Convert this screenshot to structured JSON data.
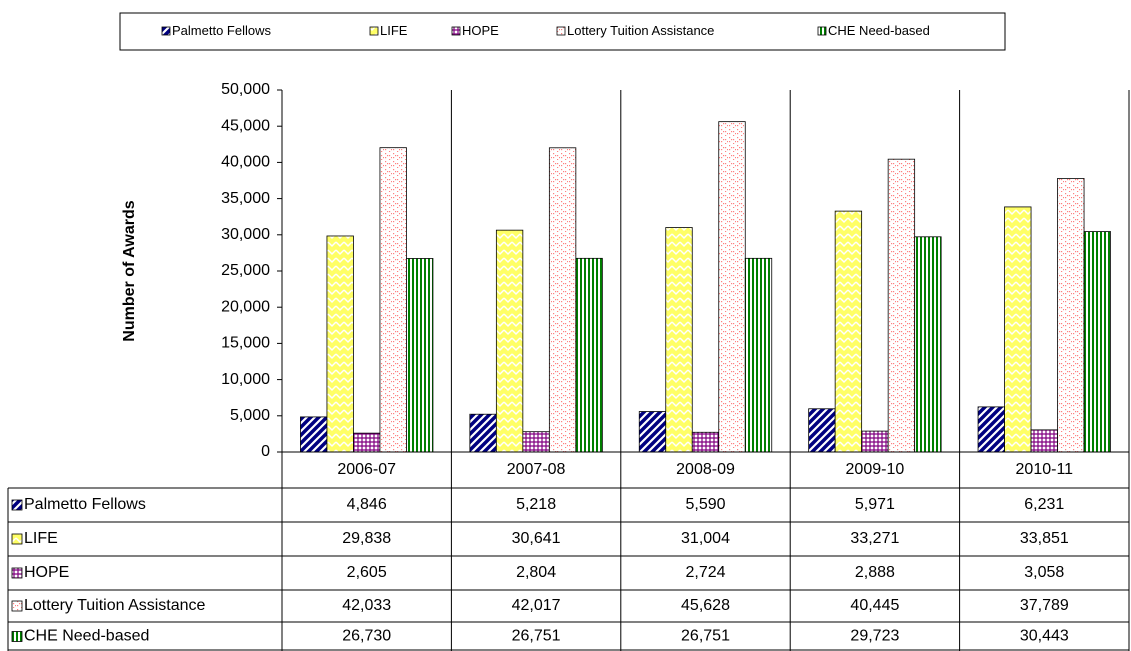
{
  "chart_data": {
    "type": "bar",
    "y_label": "Number of Awards",
    "categories": [
      "2006-07",
      "2007-08",
      "2008-09",
      "2009-10",
      "2010-11"
    ],
    "series": [
      {
        "name": "Palmetto Fellows",
        "color": "#000080",
        "pattern": "diagonal",
        "values": [
          4846,
          5218,
          5590,
          5971,
          6231
        ],
        "value_labels": [
          "4,846",
          "5,218",
          "5,590",
          "5,971",
          "6,231"
        ]
      },
      {
        "name": "LIFE",
        "color": "#ffff66",
        "pattern": "zigzag",
        "values": [
          29838,
          30641,
          31004,
          33271,
          33851
        ],
        "value_labels": [
          "29,838",
          "30,641",
          "31,004",
          "33,271",
          "33,851"
        ]
      },
      {
        "name": "HOPE",
        "color": "#800080",
        "pattern": "grid",
        "values": [
          2605,
          2804,
          2724,
          2888,
          3058
        ],
        "value_labels": [
          "2,605",
          "2,804",
          "2,724",
          "2,888",
          "3,058"
        ]
      },
      {
        "name": "Lottery Tuition Assistance",
        "color": "#ff8080",
        "pattern": "dots",
        "values": [
          42033,
          42017,
          45628,
          40445,
          37789
        ],
        "value_labels": [
          "42,033",
          "42,017",
          "45,628",
          "40,445",
          "37,789"
        ]
      },
      {
        "name": "CHE Need-based",
        "color": "#008000",
        "pattern": "vertical",
        "values": [
          26730,
          26751,
          26751,
          29723,
          30443
        ],
        "value_labels": [
          "26,730",
          "26,751",
          "26,751",
          "29,723",
          "30,443"
        ]
      }
    ],
    "ylim": [
      0,
      50000
    ],
    "yticks": [
      0,
      {
        "value": 5000,
        "label": "5,000"
      },
      {
        "value": 10000,
        "label": "10,000"
      },
      {
        "value": 15000,
        "label": "15,000"
      },
      {
        "value": 20000,
        "label": "20,000"
      },
      {
        "value": 25000,
        "label": "25,000"
      },
      {
        "value": 30000,
        "label": "30,000"
      },
      {
        "value": 35000,
        "label": "35,000"
      },
      {
        "value": 40000,
        "label": "40,000"
      },
      {
        "value": 45000,
        "label": "45,000"
      },
      {
        "value": 50000,
        "label": "50,000"
      }
    ],
    "grid": false,
    "legend": "top"
  }
}
